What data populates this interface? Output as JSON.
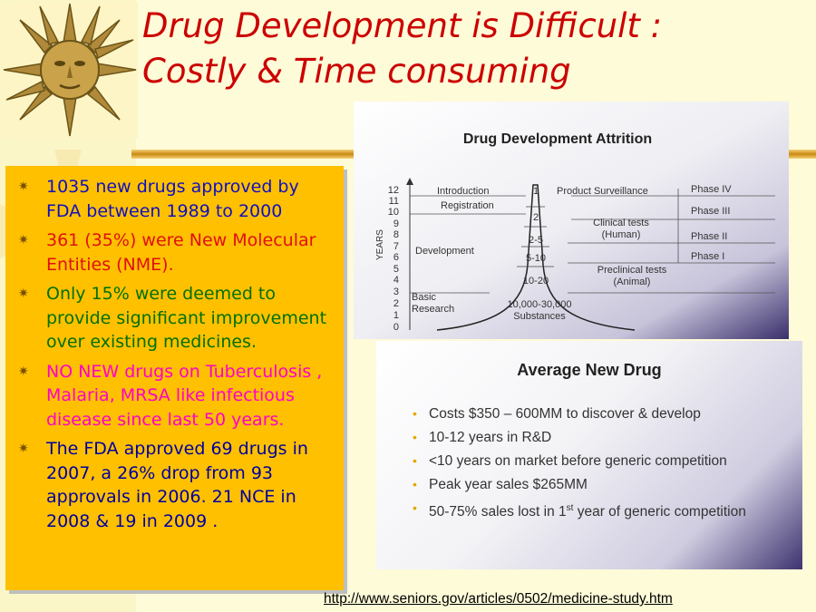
{
  "title": {
    "line1": "Drug Development is Difficult :",
    "line2": "Costly & Time consuming"
  },
  "bullets": [
    {
      "text": "1035 new drugs approved by FDA between 1989 to 2000",
      "color": "#1010c0"
    },
    {
      "text": "361 (35%) were New Molecular Entities (NME).",
      "color": "#e01010"
    },
    {
      "text": "Only 15% were deemed to provide significant improvement over existing medicines.",
      "color": "#007000"
    },
    {
      "text": "NO NEW drugs on Tuberculosis , Malaria, MRSA like infectious disease since last 50 years.",
      "color": "#ff00cc"
    },
    {
      "text": "The FDA approved 69 drugs in 2007, a 26% drop from 93 approvals in 2006. 21 NCE in 2008 & 19 in 2009 .",
      "color": "#0000a0"
    }
  ],
  "attrition": {
    "title": "Drug Development Attrition",
    "y_axis_label": "YEARS",
    "year_ticks": [
      "12",
      "11",
      "10",
      "9",
      "8",
      "7",
      "6",
      "5",
      "4",
      "3",
      "2",
      "1",
      "0"
    ],
    "stages": [
      "Introduction",
      "Registration",
      "Development",
      "Basic Research"
    ],
    "counts": [
      "1",
      "2",
      "2-5",
      "5-10",
      "10-20",
      "10,000-30,000 Substances"
    ],
    "activities": [
      "Product Surveillance",
      "Clinical tests (Human)",
      "Preclinical tests (Animal)"
    ],
    "phases": [
      "Phase IV",
      "Phase III",
      "Phase II",
      "Phase I"
    ]
  },
  "avg_drug": {
    "title": "Average New Drug",
    "items": [
      "Costs $350 – 600MM to discover & develop",
      "10-12 years in R&D",
      "<10 years on market before generic competition",
      "Peak year sales $265MM"
    ],
    "last_item": {
      "pre": "50-75% sales lost in 1",
      "sup": "st",
      "post": " year of generic competition"
    }
  },
  "link": "http://www.seniors.gov/articles/0502/medicine-study.htm",
  "colors": {
    "title": "#cc0000",
    "bullet_box": "#ffc000",
    "background": "#fdfbd8"
  }
}
